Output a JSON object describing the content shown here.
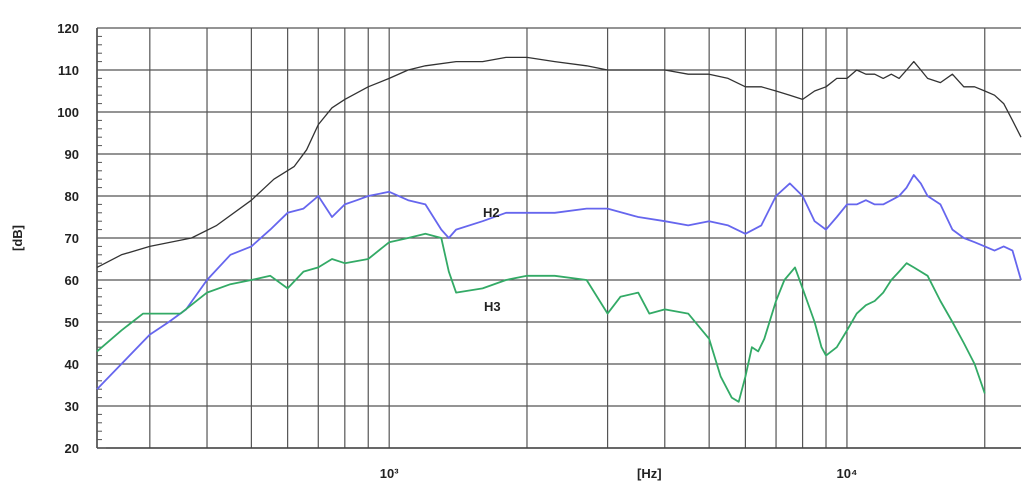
{
  "chart_data": {
    "type": "line",
    "x_scale": "log",
    "xlim": [
      230,
      24000
    ],
    "ylim": [
      20,
      120
    ],
    "grid": true,
    "ylabel": "[dB]",
    "y_ticks": [
      20,
      30,
      40,
      50,
      60,
      70,
      80,
      90,
      100,
      110,
      120
    ],
    "x_tick_labels": [
      {
        "x": 1000,
        "label": "10³"
      },
      {
        "x": 3700,
        "label": "[Hz]"
      },
      {
        "x": 10000,
        "label": "10⁴"
      }
    ],
    "series": [
      {
        "name": "",
        "color": "#333333",
        "x": [
          230,
          260,
          300,
          370,
          420,
          500,
          560,
          620,
          660,
          700,
          750,
          800,
          900,
          1000,
          1100,
          1200,
          1400,
          1600,
          1800,
          2000,
          2300,
          2700,
          3000,
          3500,
          4000,
          4500,
          5000,
          5500,
          6000,
          6500,
          7000,
          7500,
          8000,
          8500,
          9000,
          9500,
          10000,
          10500,
          11000,
          11500,
          12000,
          12500,
          13000,
          13500,
          14000,
          14500,
          15000,
          16000,
          17000,
          18000,
          19000,
          20000,
          21000,
          22000,
          23000,
          24000
        ],
        "y": [
          63,
          66,
          68,
          70,
          73,
          79,
          84,
          87,
          91,
          97,
          101,
          103,
          106,
          108,
          110,
          111,
          112,
          112,
          113,
          113,
          112,
          111,
          110,
          110,
          110,
          109,
          109,
          108,
          106,
          106,
          105,
          104,
          103,
          105,
          106,
          108,
          108,
          110,
          109,
          109,
          108,
          109,
          108,
          110,
          112,
          110,
          108,
          107,
          109,
          106,
          106,
          105,
          104,
          102,
          98,
          94
        ]
      },
      {
        "name": "H2",
        "color": "#6666ee",
        "x": [
          230,
          260,
          300,
          330,
          360,
          400,
          450,
          500,
          550,
          600,
          650,
          700,
          750,
          800,
          850,
          900,
          1000,
          1100,
          1200,
          1300,
          1350,
          1400,
          1600,
          1800,
          2000,
          2300,
          2700,
          3000,
          3500,
          4000,
          4500,
          5000,
          5500,
          6000,
          6500,
          7000,
          7500,
          8000,
          8500,
          9000,
          9500,
          10000,
          10500,
          11000,
          11500,
          12000,
          12500,
          13000,
          13500,
          14000,
          14500,
          15000,
          16000,
          17000,
          18000,
          19000,
          20000,
          21000,
          22000,
          23000,
          24000
        ],
        "y": [
          34,
          40,
          47,
          50,
          53,
          60,
          66,
          68,
          72,
          76,
          77,
          80,
          75,
          78,
          79,
          80,
          81,
          79,
          78,
          72,
          70,
          72,
          74,
          76,
          76,
          76,
          77,
          77,
          75,
          74,
          73,
          74,
          73,
          71,
          73,
          80,
          83,
          80,
          74,
          72,
          75,
          78,
          78,
          79,
          78,
          78,
          79,
          80,
          82,
          85,
          83,
          80,
          78,
          72,
          70,
          69,
          68,
          67,
          68,
          67,
          60
        ]
      },
      {
        "name": "H3",
        "color": "#33aa66",
        "x": [
          230,
          260,
          290,
          320,
          350,
          400,
          450,
          500,
          550,
          600,
          650,
          700,
          750,
          800,
          900,
          1000,
          1100,
          1200,
          1300,
          1350,
          1400,
          1600,
          1800,
          2000,
          2300,
          2700,
          3000,
          3200,
          3500,
          3700,
          4000,
          4500,
          5000,
          5300,
          5600,
          5800,
          6000,
          6200,
          6400,
          6600,
          7000,
          7300,
          7700,
          8000,
          8500,
          8800,
          9000,
          9500,
          10000,
          10500,
          11000,
          11500,
          12000,
          12500,
          13000,
          13500,
          14000,
          15000,
          16000,
          17000,
          18000,
          19000,
          20000
        ],
        "y": [
          43,
          48,
          52,
          52,
          52,
          57,
          59,
          60,
          61,
          58,
          62,
          63,
          65,
          64,
          65,
          69,
          70,
          71,
          70,
          62,
          57,
          58,
          60,
          61,
          61,
          60,
          52,
          56,
          57,
          52,
          53,
          52,
          46,
          37,
          32,
          31,
          37,
          44,
          43,
          46,
          55,
          60,
          63,
          58,
          50,
          44,
          42,
          44,
          48,
          52,
          54,
          55,
          57,
          60,
          62,
          64,
          63,
          61,
          55,
          50,
          45,
          40,
          33
        ]
      }
    ]
  }
}
